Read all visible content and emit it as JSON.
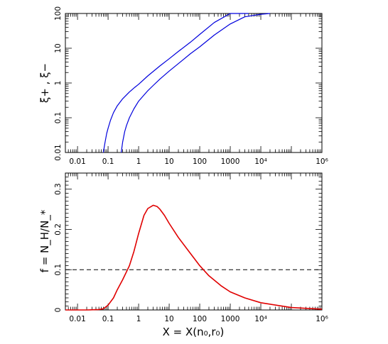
{
  "chart_data": [
    {
      "type": "line",
      "xlabel": "",
      "ylabel": "ξ+ , ξ−",
      "xscale": "log",
      "yscale": "log",
      "xlim": [
        0.004,
        1000000
      ],
      "ylim": [
        0.01,
        100
      ],
      "x_ticklabels": [
        "0.01",
        "0.1",
        "1",
        "10",
        "100",
        "1000",
        "10⁴",
        "10⁶"
      ],
      "y_ticklabels": [
        "0.01",
        "0.1",
        "1",
        "10",
        "100"
      ],
      "color": "#0000dd",
      "series": [
        {
          "x": [
            0.07,
            0.08,
            0.09,
            0.1,
            0.12,
            0.15,
            0.2,
            0.3,
            0.5,
            0.75,
            1,
            2,
            5,
            10,
            20,
            50,
            100,
            300,
            1000,
            4000
          ],
          "values": [
            0.01,
            0.02,
            0.035,
            0.05,
            0.085,
            0.14,
            0.22,
            0.35,
            0.55,
            0.75,
            0.92,
            1.6,
            3.1,
            5.0,
            8.1,
            15,
            25,
            55,
            120,
            100
          ]
        },
        {
          "x": [
            0.27,
            0.3,
            0.35,
            0.4,
            0.5,
            0.7,
            1,
            1.5,
            2,
            3,
            5,
            10,
            20,
            50,
            100,
            300,
            1000,
            3000,
            10000,
            20000
          ],
          "values": [
            0.01,
            0.02,
            0.04,
            0.06,
            0.1,
            0.18,
            0.3,
            0.45,
            0.6,
            0.85,
            1.3,
            2.2,
            3.6,
            7.0,
            11,
            24,
            50,
            80,
            95,
            100
          ]
        }
      ]
    },
    {
      "type": "line",
      "xlabel": "X = X(n₀,r₀)",
      "ylabel": "f = N_H/N_*",
      "xscale": "log",
      "yscale": "linear",
      "xlim": [
        0.004,
        1000000
      ],
      "ylim": [
        0,
        0.34
      ],
      "x_ticklabels": [
        "0.01",
        "0.1",
        "1",
        "10",
        "100",
        "1000",
        "10⁴",
        "10⁶"
      ],
      "y_ticklabels": [
        "0",
        "0.1",
        "0.2",
        "0.3"
      ],
      "color": "#e00000",
      "series": [
        {
          "x": [
            0.004,
            0.02,
            0.05,
            0.07,
            0.1,
            0.15,
            0.2,
            0.3,
            0.5,
            0.7,
            1,
            1.5,
            2,
            3,
            4,
            5,
            7,
            10,
            20,
            50,
            100,
            200,
            500,
            1000,
            3000,
            10000,
            100000,
            1000000
          ],
          "values": [
            0.0,
            0.0,
            0.001,
            0.003,
            0.012,
            0.03,
            0.05,
            0.075,
            0.11,
            0.145,
            0.19,
            0.235,
            0.252,
            0.26,
            0.257,
            0.25,
            0.235,
            0.215,
            0.18,
            0.14,
            0.11,
            0.085,
            0.06,
            0.045,
            0.03,
            0.018,
            0.006,
            0.002
          ]
        }
      ],
      "reference_line": {
        "y": 0.1,
        "style": "dashed"
      }
    }
  ]
}
